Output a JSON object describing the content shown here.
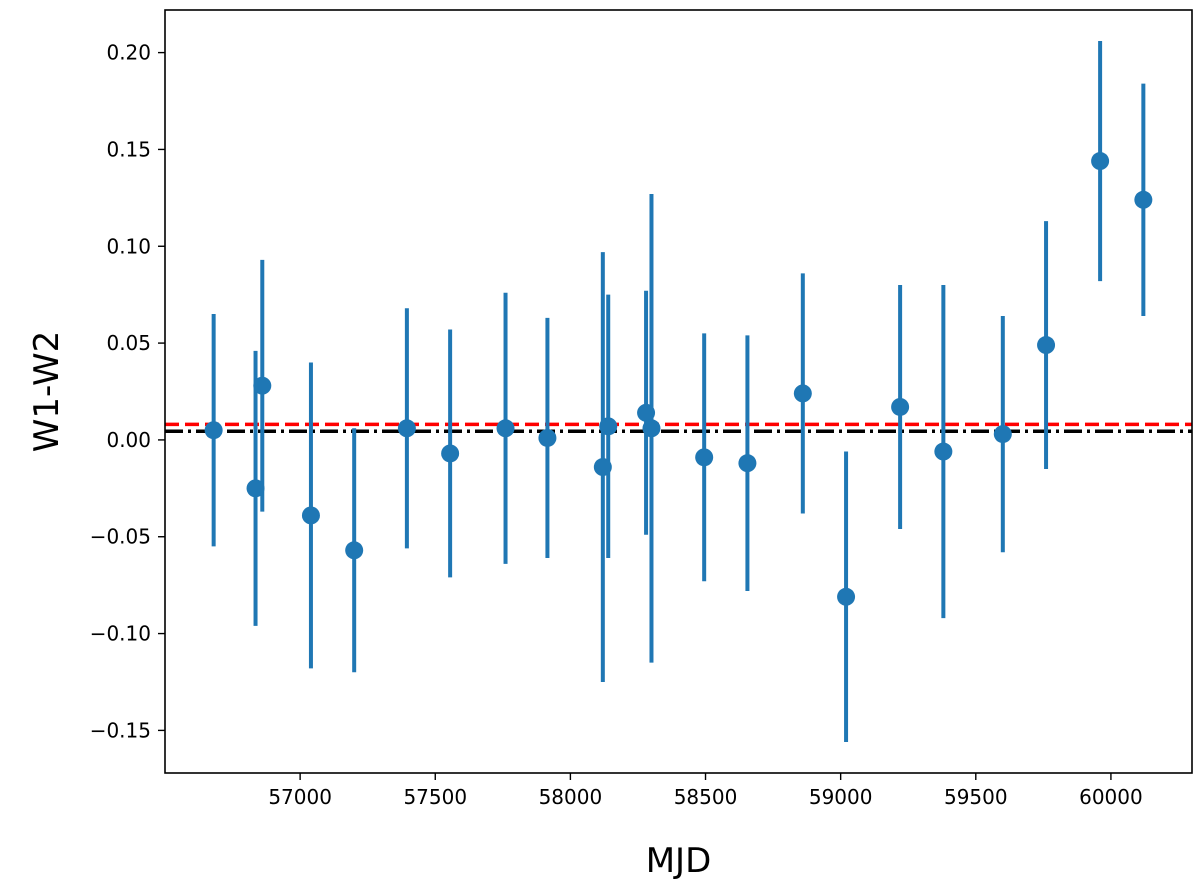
{
  "chart_data": {
    "type": "scatter",
    "title": "",
    "xlabel": "MJD",
    "ylabel": "W1-W2",
    "xlim": [
      56500,
      60300
    ],
    "ylim": [
      -0.172,
      0.222
    ],
    "xticks": [
      57000,
      57500,
      58000,
      58500,
      59000,
      59500,
      60000
    ],
    "xtick_labels": [
      "57000",
      "57500",
      "58000",
      "58500",
      "59000",
      "59500",
      "60000"
    ],
    "yticks": [
      -0.15,
      -0.1,
      -0.05,
      0.0,
      0.05,
      0.1,
      0.15,
      0.2
    ],
    "ytick_labels": [
      "−0.15",
      "−0.10",
      "−0.05",
      "0.00",
      "0.05",
      "0.10",
      "0.15",
      "0.20"
    ],
    "grid": false,
    "series": [
      {
        "color": "#1f77b4",
        "marker": "circle",
        "points": [
          {
            "x": 56680,
            "y": 0.005,
            "err": 0.06
          },
          {
            "x": 56835,
            "y": -0.025,
            "err": 0.071
          },
          {
            "x": 56860,
            "y": 0.028,
            "err": 0.065
          },
          {
            "x": 57040,
            "y": -0.039,
            "err": 0.079
          },
          {
            "x": 57200,
            "y": -0.057,
            "err": 0.063
          },
          {
            "x": 57395,
            "y": 0.006,
            "err": 0.062
          },
          {
            "x": 57555,
            "y": -0.007,
            "err": 0.064
          },
          {
            "x": 57760,
            "y": 0.006,
            "err": 0.07
          },
          {
            "x": 57915,
            "y": 0.001,
            "err": 0.062
          },
          {
            "x": 58120,
            "y": -0.014,
            "err": 0.111
          },
          {
            "x": 58140,
            "y": 0.007,
            "err": 0.068
          },
          {
            "x": 58280,
            "y": 0.014,
            "err": 0.063
          },
          {
            "x": 58300,
            "y": 0.006,
            "err": 0.121
          },
          {
            "x": 58495,
            "y": -0.009,
            "err": 0.064
          },
          {
            "x": 58655,
            "y": -0.012,
            "err": 0.066
          },
          {
            "x": 58860,
            "y": 0.024,
            "err": 0.062
          },
          {
            "x": 59020,
            "y": -0.081,
            "err": 0.075
          },
          {
            "x": 59220,
            "y": 0.017,
            "err": 0.063
          },
          {
            "x": 59380,
            "y": -0.006,
            "err": 0.086
          },
          {
            "x": 59600,
            "y": 0.003,
            "err": 0.061
          },
          {
            "x": 59760,
            "y": 0.049,
            "err": 0.064
          },
          {
            "x": 59960,
            "y": 0.144,
            "err": 0.062
          },
          {
            "x": 60120,
            "y": 0.124,
            "err": 0.06
          }
        ]
      }
    ],
    "reference_lines": [
      {
        "y": 0.008,
        "style": "dashed",
        "color": "#ff0000"
      },
      {
        "y": 0.0045,
        "style": "dashdot",
        "color": "#000000"
      }
    ]
  }
}
